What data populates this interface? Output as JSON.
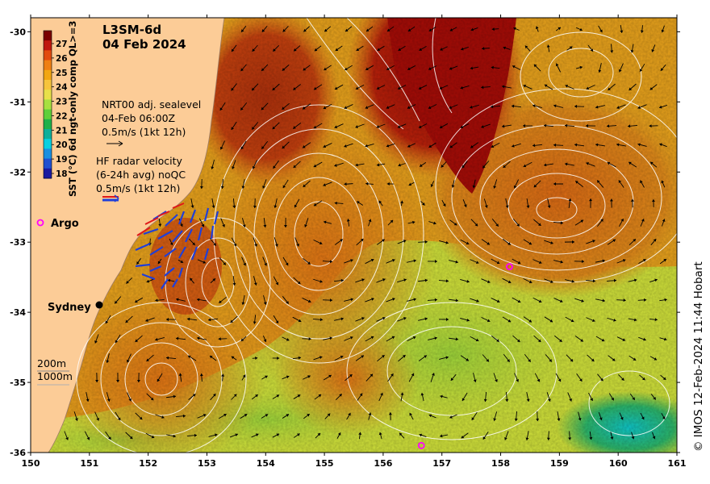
{
  "title": {
    "product": "L3SM-6d",
    "date": "04 Feb 2024"
  },
  "colorbar": {
    "label": "SST (°C) 6d ngt-only comp QL>=3",
    "ticks": [
      "27",
      "26",
      "25",
      "24",
      "23",
      "22",
      "21",
      "20",
      "19",
      "18"
    ],
    "colors": [
      "#7a0000",
      "#c0170e",
      "#e24a0f",
      "#ef7f13",
      "#f2a612",
      "#f6c43c",
      "#e8e04a",
      "#a8e040",
      "#5fcf3a",
      "#20b04a",
      "#0faf9a",
      "#0ad0e0",
      "#1a8fe0",
      "#2050d0",
      "#1a1aa0"
    ]
  },
  "legend": {
    "sealevel": {
      "line1": "NRT00 adj. sealevel",
      "line2": "04-Feb 06:00Z",
      "line3": "0.5m/s (1kt 12h)"
    },
    "hfradar": {
      "line1": "HF radar velocity",
      "line2": "(6-24h avg) noQC",
      "line3": "0.5m/s (1kt 12h)"
    },
    "argo": "Argo",
    "city": "Sydney",
    "isobath_200": "200m",
    "isobath_1000": "1000m"
  },
  "axes": {
    "x_ticks": [
      "150",
      "151",
      "152",
      "153",
      "154",
      "155",
      "156",
      "157",
      "158",
      "159",
      "160",
      "161"
    ],
    "y_ticks": [
      "-30",
      "-31",
      "-32",
      "-33",
      "-34",
      "-35",
      "-36"
    ],
    "xlim": [
      150,
      161
    ],
    "ylim": [
      -36,
      -29.8
    ]
  },
  "argo_floats": [
    {
      "lon": 158.15,
      "lat": -33.35
    },
    {
      "lon": 156.65,
      "lat": -35.9
    }
  ],
  "colors": {
    "land": "#fccc97",
    "warm_core": "#a8100a",
    "mid": "#e58a1a",
    "cool": "#c8e03a",
    "contour": "#ffffff",
    "argo": "#ff00ff",
    "hf_arrow": "#1f3fd9"
  },
  "credit": "© IMOS 12-Feb-2024 11:44 Hobart"
}
